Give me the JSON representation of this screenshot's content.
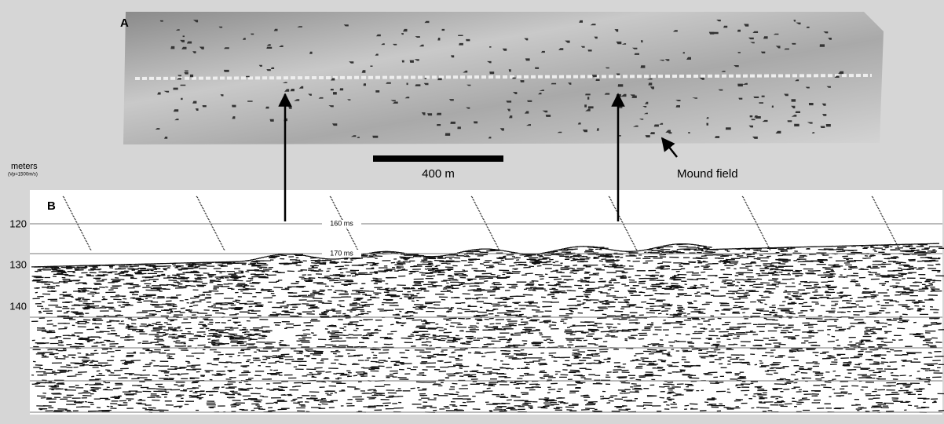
{
  "panel_a": {
    "label": "A",
    "scale_bar": "400 m",
    "annotation": "Mound field"
  },
  "panel_b": {
    "label": "B",
    "axis_label": "meters",
    "axis_sublabel": "(Vp=1500m/s)",
    "depth_ticks": [
      "120",
      "130",
      "140"
    ],
    "time_lines": [
      "160 ms",
      "170 ms"
    ]
  }
}
